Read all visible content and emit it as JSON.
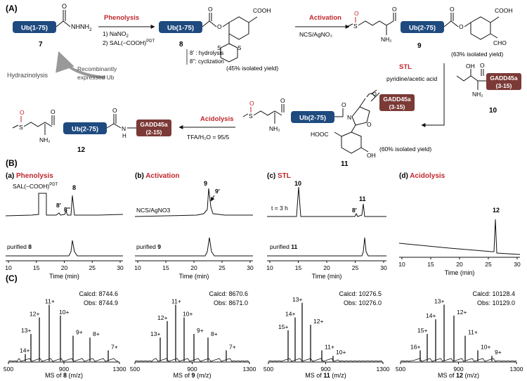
{
  "scheme": {
    "section_label": "(A)",
    "c7": {
      "reagent": "Ub(1-75)",
      "group": "NHNH",
      "subscript": "2",
      "label": "7"
    },
    "phenolysis": {
      "title": "Phenolysis",
      "step1_pre": "1) NaNO",
      "step1_sub": "2",
      "step2_pre": "2) SAL(−COOH)",
      "step2_sup": "PDT"
    },
    "c8": {
      "reagent": "Ub(1-75)",
      "label": "8",
      "note1": "8' : hydrolysis",
      "note2": "8'': cyclization",
      "yield": "(45% isolated yield)",
      "cooh": "COOH"
    },
    "activation": {
      "title": "Activation",
      "reagents": "NCS/AgNO₃"
    },
    "c9": {
      "reagent": "Ub(2-75)",
      "label": "9",
      "yield": "(63% isolated yield)",
      "cooh": "COOH",
      "cho": "CHO",
      "s": "S",
      "o": "O",
      "nh2": "NH₂"
    },
    "hydrazinolysis": "Hydrazinolysis",
    "recombinant": {
      "line1": "Recombinantly",
      "line2": "expressed Ub"
    },
    "stl": {
      "title": "STL",
      "conditions": "pyridine/acetic acid"
    },
    "c10": {
      "label": "10",
      "peptide_l1": "GADD45a",
      "peptide_l2": "(3-15)",
      "oh": "OH",
      "nh2": "NH₂",
      "o": "O"
    },
    "c11": {
      "label": "11",
      "reagent": "Ub(2-75)",
      "peptide_l1": "GADD45a",
      "peptide_l2": "(3-15)",
      "yield": "(60% isolated yield)",
      "hooc": "HOOC",
      "oh": "OH",
      "n": "N",
      "o": "O",
      "s": "S",
      "nh2": "NH₂"
    },
    "acidolysis": {
      "title": "Acidolysis",
      "conditions": "TFA/H₂O = 95/5"
    },
    "c12": {
      "label": "12",
      "reagent": "Ub(2-75)",
      "peptide_l1": "GADD45a",
      "peptide_l2": "(2-15)",
      "s": "S",
      "o": "O",
      "nh2": "NH₂",
      "h": "H",
      "n": "N"
    }
  },
  "section_b": {
    "label": "(B)",
    "panels": [
      {
        "tag": "(a)",
        "title": "Phenolysis",
        "xlabel": "Time (min)",
        "ticks": [
          "10",
          "15",
          "20",
          "25",
          "30"
        ],
        "top_annot": {
          "sal": "SAL(−COOH)",
          "pdt": "PDT",
          "p8": "8",
          "p8a": "8'",
          "p8b": "8''"
        },
        "bottom_label": "purified ",
        "bottom_num": "8"
      },
      {
        "tag": "(b)",
        "title": "Activation",
        "xlabel": "Time (min)",
        "ticks": [
          "10",
          "15",
          "20",
          "25",
          "30"
        ],
        "top_annot": {
          "reagent": "NCS/AgNO3",
          "p9": "9",
          "p9a": "9'"
        },
        "bottom_label": "purified ",
        "bottom_num": "9"
      },
      {
        "tag": "(c)",
        "title": "STL",
        "xlabel": "Time (min)",
        "ticks": [
          "10",
          "15",
          "20",
          "25",
          "30"
        ],
        "top_annot": {
          "time": "t = 3 h",
          "p10": "10",
          "p11": "11",
          "p8a": "8'"
        },
        "bottom_label": "purified ",
        "bottom_num": "11"
      },
      {
        "tag": "(d)",
        "title": "Acidolysis",
        "xlabel": "Time (min)",
        "ticks": [
          "10",
          "15",
          "20",
          "25",
          "30"
        ],
        "top_annot": {
          "p12": "12"
        }
      }
    ]
  },
  "section_c": {
    "label": "(C)",
    "panels": [
      {
        "calcd": "Calcd: 8744.6",
        "obs": "Obs: 8744.9",
        "ms_pre": "MS of ",
        "ms_num": "8",
        "ms_post": " (m/z)",
        "ticks": [
          "500",
          "900",
          "1300"
        ],
        "charges": [
          "14+",
          "13+",
          "12+",
          "11+",
          "10+",
          "9+",
          "8+",
          "7+"
        ]
      },
      {
        "calcd": "Calcd: 8670.6",
        "obs": "Obs: 8671.0",
        "ms_pre": "MS of ",
        "ms_num": "9",
        "ms_post": " (m/z)",
        "ticks": [
          "500",
          "900",
          "1300"
        ],
        "charges": [
          "13+",
          "12+",
          "11+",
          "10+",
          "9+",
          "8+",
          "7+"
        ]
      },
      {
        "calcd": "Calcd: 10276.5",
        "obs": "Obs: 10276.0",
        "ms_pre": "MS of ",
        "ms_num": "11",
        "ms_post": " (m/z)",
        "ticks": [
          "500",
          "900",
          "1300"
        ],
        "charges": [
          "15+",
          "14+",
          "13+",
          "12+",
          "11+",
          "10+"
        ]
      },
      {
        "calcd": "Calcd: 10128.4",
        "obs": "Obs: 10129.0",
        "ms_pre": "MS of ",
        "ms_num": "12",
        "ms_post": " (m/z)",
        "ticks": [
          "500",
          "900",
          "1300"
        ],
        "charges": [
          "16+",
          "15+",
          "14+",
          "13+",
          "12+",
          "11+",
          "10+",
          "9+"
        ]
      }
    ]
  },
  "colors": {
    "ub_blue": "#1e4a7f",
    "gadd_brown": "#7b3a36",
    "accent_red": "#c0262d",
    "s_oxide": "#c0262d"
  }
}
